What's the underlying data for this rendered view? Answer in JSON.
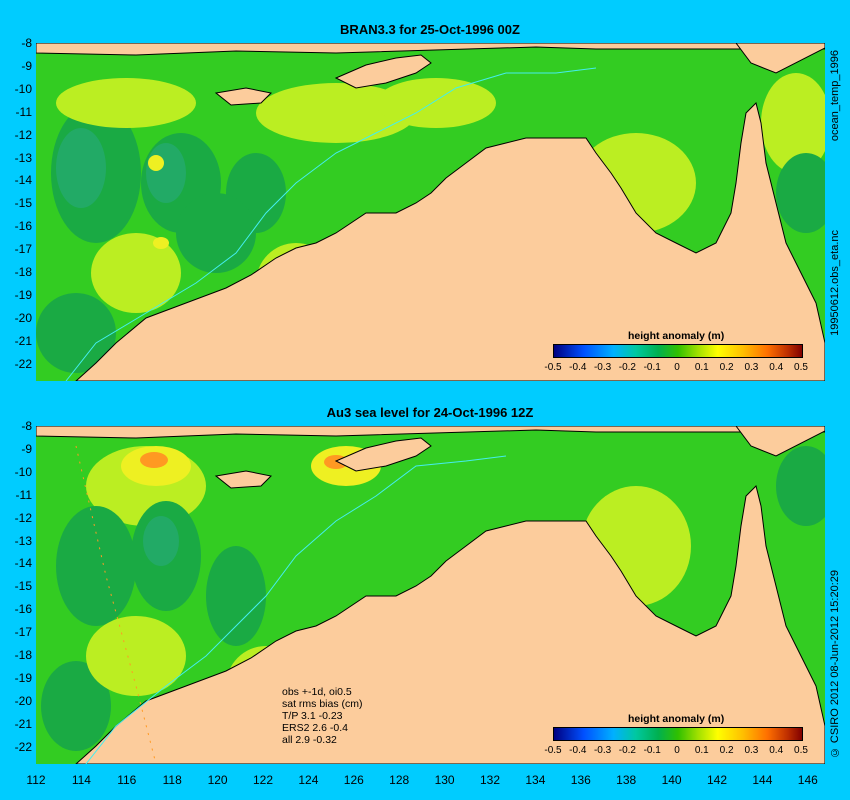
{
  "panels": [
    {
      "title": "BRAN3.3 for 25-Oct-1996 00Z",
      "side_label": "ocean_temp_1996",
      "side_label2": "19950612.obs_eta.nc",
      "colorbar_title": "height anomaly (m)"
    },
    {
      "title": "Au3 sea level  for 24-Oct-1996 12Z",
      "side_label": "© CSIRO 2012  08-Jun-2012 15:20:29",
      "colorbar_title": "height anomaly (m)",
      "notes": [
        "obs +-1d, oi0.5",
        "sat rms bias (cm)",
        "T/P  3.1 -0.23",
        "ERS2 2.6 -0.4",
        "all 2.9 -0.32"
      ]
    }
  ],
  "y_ticks": [
    "-8",
    "-9",
    "-10",
    "-11",
    "-12",
    "-13",
    "-14",
    "-15",
    "-16",
    "-17",
    "-18",
    "-19",
    "-20",
    "-21",
    "-22"
  ],
  "x_ticks": [
    "112",
    "114",
    "116",
    "118",
    "120",
    "122",
    "124",
    "126",
    "128",
    "130",
    "132",
    "134",
    "136",
    "138",
    "140",
    "142",
    "144",
    "146"
  ],
  "colorbar_ticks": [
    "-0.5",
    "-0.4",
    "-0.3",
    "-0.2",
    "-0.1",
    "0",
    "0.1",
    "0.2",
    "0.3",
    "0.4",
    "0.5"
  ],
  "colors": {
    "background": "#00ccff",
    "land": "#fccc9c",
    "ocean_base": "#33cc22",
    "ocean_low": "#1aaa44",
    "ocean_lower": "#22aa66",
    "ocean_high": "#bbee22",
    "ocean_higher": "#eef022",
    "ocean_peak": "#ff9922",
    "contour": "#44eeee"
  },
  "map_extent": {
    "lon": [
      112,
      147
    ],
    "lat": [
      -22.5,
      -8
    ]
  }
}
